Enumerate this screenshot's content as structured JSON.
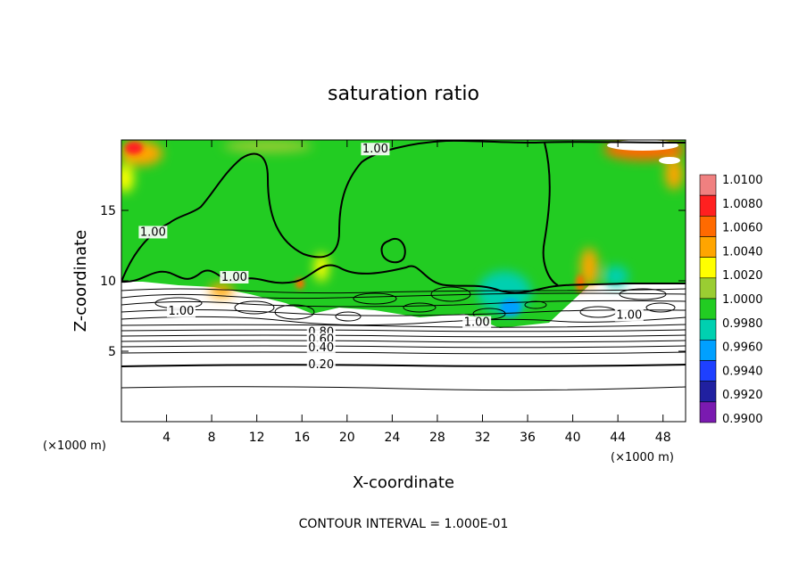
{
  "chart_data": {
    "type": "heatmap",
    "title": "saturation ratio",
    "xlabel": "X-coordinate",
    "ylabel": "Z-coordinate",
    "x_unit": "(×1000 m)",
    "y_unit": "(×1000 m)",
    "xlim": [
      0,
      50
    ],
    "ylim": [
      0,
      20
    ],
    "x_ticks": [
      4,
      8,
      12,
      16,
      20,
      24,
      28,
      32,
      36,
      40,
      44,
      48
    ],
    "y_ticks": [
      5,
      10,
      15
    ],
    "footnote": "CONTOUR INTERVAL = 1.000E-01",
    "colorbar": {
      "levels": [
        "1.0100",
        "1.0080",
        "1.0060",
        "1.0040",
        "1.0020",
        "1.0000",
        "0.9980",
        "0.9960",
        "0.9940",
        "0.9920",
        "0.9900"
      ],
      "colors": [
        "#f08080",
        "#ff2020",
        "#ff6a00",
        "#ffa500",
        "#ffff00",
        "#9acd32",
        "#22cc22",
        "#00d0b0",
        "#00a0ff",
        "#1e40ff",
        "#2020a0",
        "#7a1ab0"
      ]
    },
    "contour_labels": [
      {
        "text": "1.00",
        "x": 22.5,
        "y": 19.1
      },
      {
        "text": "1.00",
        "x": 2.8,
        "y": 13.2
      },
      {
        "text": "1.00",
        "x": 10.0,
        "y": 10.0
      },
      {
        "text": "1.00",
        "x": 5.3,
        "y": 7.6
      },
      {
        "text": "1.00",
        "x": 31.5,
        "y": 6.8
      },
      {
        "text": "1.00",
        "x": 45.0,
        "y": 7.3
      },
      {
        "text": "0.80",
        "x": 17.7,
        "y": 6.1
      },
      {
        "text": "0.60",
        "x": 17.7,
        "y": 5.6
      },
      {
        "text": "0.40",
        "x": 17.7,
        "y": 5.0
      },
      {
        "text": "0.20",
        "x": 17.7,
        "y": 3.8
      }
    ]
  }
}
